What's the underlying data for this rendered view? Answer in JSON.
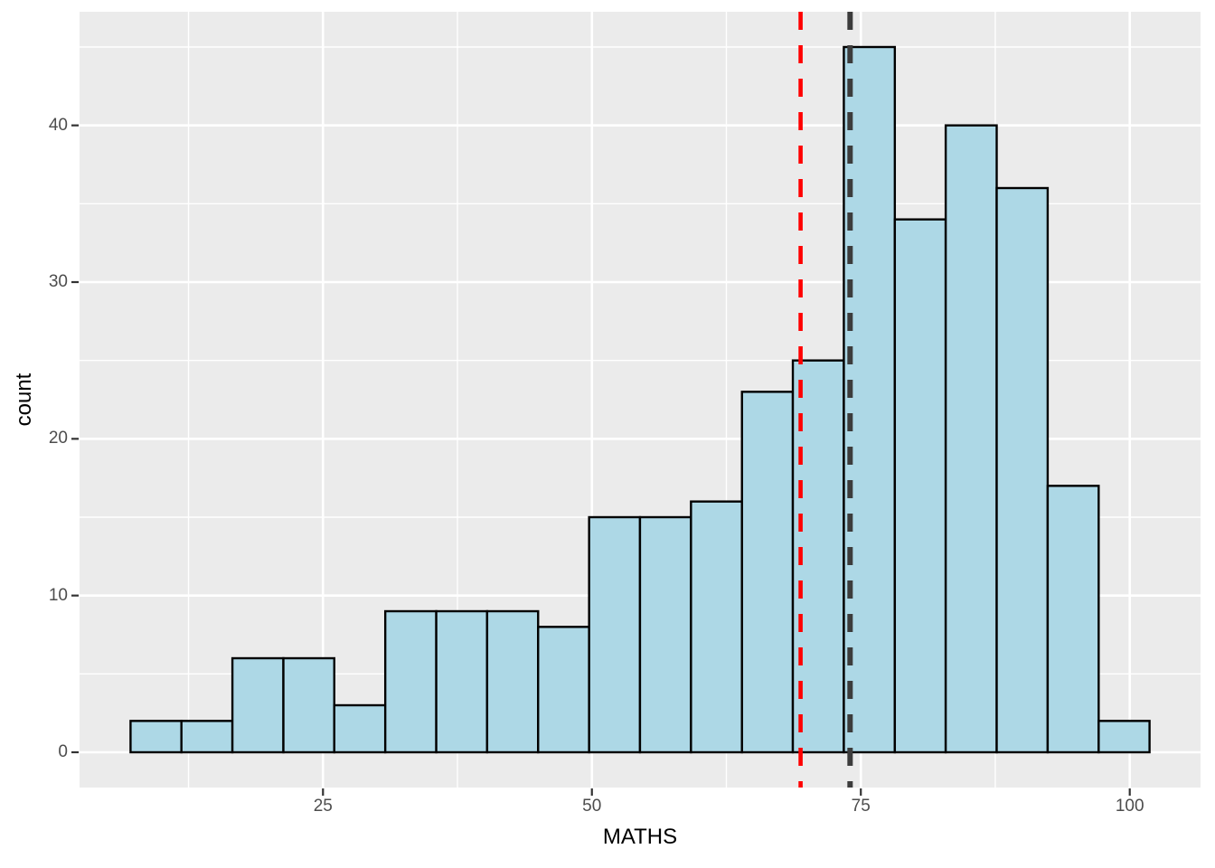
{
  "chart_data": {
    "type": "bar",
    "subtype": "histogram",
    "title": "",
    "xlabel": "MATHS",
    "ylabel": "count",
    "bin_edges": [
      7.11,
      11.84,
      16.58,
      21.32,
      26.05,
      30.79,
      35.53,
      40.26,
      45.0,
      49.74,
      54.47,
      59.21,
      63.95,
      68.68,
      73.42,
      78.16,
      82.89,
      87.63,
      92.37,
      97.11,
      101.84
    ],
    "counts": [
      2,
      2,
      6,
      6,
      3,
      9,
      9,
      9,
      8,
      15,
      15,
      16,
      23,
      25,
      45,
      34,
      40,
      36,
      17,
      2
    ],
    "x_ticks": [
      25,
      50,
      75,
      100
    ],
    "x_minor_ticks": [
      12.5,
      37.5,
      62.5,
      87.5
    ],
    "y_ticks": [
      0,
      10,
      20,
      30,
      40
    ],
    "y_minor_ticks": [
      5,
      15,
      25,
      35,
      45
    ],
    "x_domain": [
      2.37,
      106.58
    ],
    "y_domain": [
      -2.25,
      47.25
    ],
    "ylim": [
      0,
      45
    ],
    "grid": true,
    "legend_position": "none",
    "reference_lines": [
      {
        "name": "red-dashed-vline",
        "x": 69.4,
        "color": "#FF0000",
        "style": "dashed"
      },
      {
        "name": "dark-dashed-vline",
        "x": 74.0,
        "color": "#3C3C3C",
        "style": "dashed"
      }
    ],
    "colors": {
      "panel_background": "#EBEBEB",
      "figure_background": "#FFFFFF",
      "gridline": "#FFFFFF",
      "bar_fill": "#ADD8E6",
      "bar_stroke": "#000000",
      "tick_mark": "#333333",
      "tick_label": "#4D4D4D",
      "axis_title": "#000000"
    }
  }
}
